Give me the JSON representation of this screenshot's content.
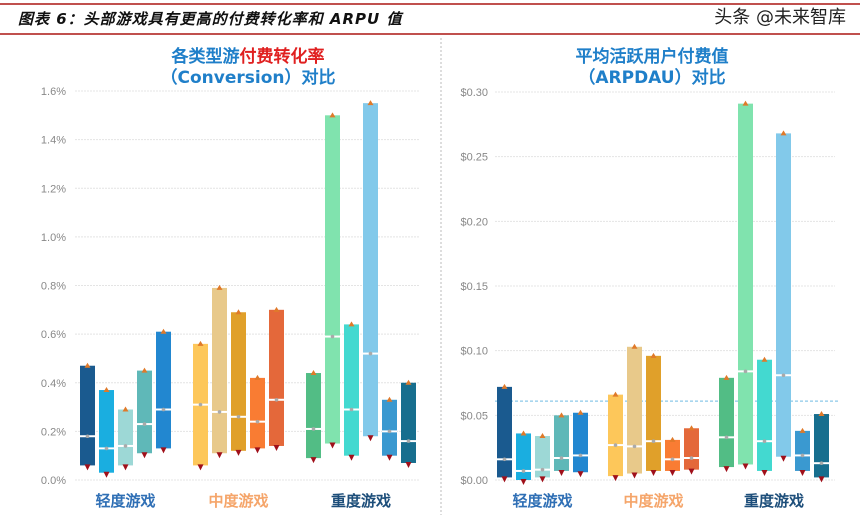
{
  "header": {
    "title": "图表 6：头部游戏具有更高的付费转化率和 ARPU 值"
  },
  "watermark": "头条 @未来智库",
  "chart_data": [
    {
      "type": "range-bar",
      "title_part1": "各类型游",
      "title_part2": "付费转化率",
      "title_line2": "（Conversion）对比",
      "title_colors": {
        "blue": "#1f7fc9",
        "red": "#e02020"
      },
      "yticks": [
        "0.0%",
        "0.2%",
        "0.4%",
        "0.6%",
        "0.8%",
        "1.0%",
        "1.2%",
        "1.4%",
        "1.6%"
      ],
      "ylim": [
        0,
        1.6
      ],
      "unit": "%",
      "grid": true,
      "groups": [
        {
          "label": "轻度游戏",
          "color": "#2f6fb5",
          "bars": [
            {
              "max": 0.47,
              "min": 0.06,
              "median": 0.18,
              "color": "#1a5a8f"
            },
            {
              "max": 0.37,
              "min": 0.03,
              "median": 0.13,
              "color": "#1aaee0"
            },
            {
              "max": 0.29,
              "min": 0.06,
              "median": 0.14,
              "color": "#9dd8d6"
            },
            {
              "max": 0.45,
              "min": 0.11,
              "median": 0.23,
              "color": "#5fb8b8"
            },
            {
              "max": 0.61,
              "min": 0.13,
              "median": 0.29,
              "color": "#2287d0"
            }
          ]
        },
        {
          "label": "中度游戏",
          "color": "#f5a56a",
          "bars": [
            {
              "max": 0.56,
              "min": 0.06,
              "median": 0.31,
              "color": "#fdc75a"
            },
            {
              "max": 0.79,
              "min": 0.11,
              "median": 0.28,
              "color": "#e8c98a"
            },
            {
              "max": 0.69,
              "min": 0.12,
              "median": 0.26,
              "color": "#e0a02a"
            },
            {
              "max": 0.42,
              "min": 0.13,
              "median": 0.24,
              "color": "#f97c33"
            },
            {
              "max": 0.7,
              "min": 0.14,
              "median": 0.33,
              "color": "#e4683a"
            }
          ]
        },
        {
          "label": "重度游戏",
          "color": "#1d4e7a",
          "bars": [
            {
              "max": 0.44,
              "min": 0.09,
              "median": 0.21,
              "color": "#52bd85"
            },
            {
              "max": 1.5,
              "min": 0.15,
              "median": 0.59,
              "color": "#80e3ae"
            },
            {
              "max": 0.64,
              "min": 0.1,
              "median": 0.29,
              "color": "#43d9d0"
            },
            {
              "max": 1.55,
              "min": 0.18,
              "median": 0.52,
              "color": "#82c9ea"
            },
            {
              "max": 0.33,
              "min": 0.1,
              "median": 0.2,
              "color": "#3a99d0"
            },
            {
              "max": 0.4,
              "min": 0.07,
              "median": 0.16,
              "color": "#176e8e"
            }
          ]
        }
      ]
    },
    {
      "type": "range-bar",
      "title_part1": "平均活跃用户付费值",
      "title_part2": "",
      "title_line2": "（ARPDAU）对比",
      "title_colors": {
        "blue": "#1f7fc9",
        "red": "#e02020"
      },
      "yticks": [
        "$0.00",
        "$0.05",
        "$0.10",
        "$0.15",
        "$0.20",
        "$0.25",
        "$0.30"
      ],
      "ylim": [
        0,
        0.3
      ],
      "unit": "$",
      "grid": true,
      "reference_line": 0.061,
      "groups": [
        {
          "label": "轻度游戏",
          "color": "#2f6fb5",
          "bars": [
            {
              "max": 0.072,
              "min": 0.002,
              "median": 0.016,
              "color": "#1a5a8f"
            },
            {
              "max": 0.036,
              "min": 0.0,
              "median": 0.007,
              "color": "#1aaee0"
            },
            {
              "max": 0.034,
              "min": 0.002,
              "median": 0.008,
              "color": "#9dd8d6"
            },
            {
              "max": 0.05,
              "min": 0.007,
              "median": 0.017,
              "color": "#5fb8b8"
            },
            {
              "max": 0.052,
              "min": 0.006,
              "median": 0.019,
              "color": "#2287d0"
            }
          ]
        },
        {
          "label": "中度游戏",
          "color": "#f5a56a",
          "bars": [
            {
              "max": 0.066,
              "min": 0.003,
              "median": 0.027,
              "color": "#fdc75a"
            },
            {
              "max": 0.103,
              "min": 0.005,
              "median": 0.026,
              "color": "#e8c98a"
            },
            {
              "max": 0.096,
              "min": 0.007,
              "median": 0.03,
              "color": "#e0a02a"
            },
            {
              "max": 0.031,
              "min": 0.007,
              "median": 0.016,
              "color": "#f97c33"
            },
            {
              "max": 0.04,
              "min": 0.008,
              "median": 0.017,
              "color": "#e4683a"
            }
          ]
        },
        {
          "label": "重度游戏",
          "color": "#1d4e7a",
          "bars": [
            {
              "max": 0.079,
              "min": 0.01,
              "median": 0.033,
              "color": "#52bd85"
            },
            {
              "max": 0.291,
              "min": 0.012,
              "median": 0.084,
              "color": "#80e3ae"
            },
            {
              "max": 0.093,
              "min": 0.007,
              "median": 0.03,
              "color": "#43d9d0"
            },
            {
              "max": 0.268,
              "min": 0.018,
              "median": 0.081,
              "color": "#82c9ea"
            },
            {
              "max": 0.038,
              "min": 0.007,
              "median": 0.019,
              "color": "#3a99d0"
            },
            {
              "max": 0.051,
              "min": 0.002,
              "median": 0.013,
              "color": "#176e8e"
            }
          ]
        }
      ]
    }
  ]
}
